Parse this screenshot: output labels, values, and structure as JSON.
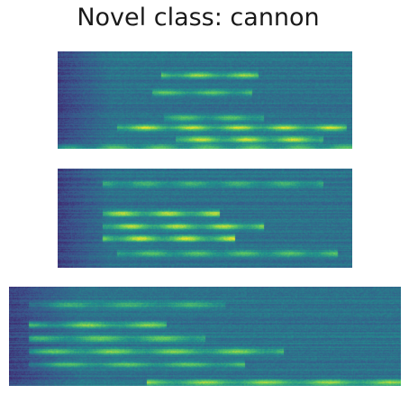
{
  "title": "Novel class: cannon",
  "colormap": [
    "#440154",
    "#3b528b",
    "#21918c",
    "#5ec962",
    "#fde725"
  ],
  "spectrograms": [
    {
      "name": "spectrogram-1",
      "bands": [
        {
          "f": 0.76,
          "t0": 0.35,
          "t1": 0.68,
          "a": 0.45
        },
        {
          "f": 0.58,
          "t0": 0.32,
          "t1": 0.66,
          "a": 0.35
        },
        {
          "f": 0.32,
          "t0": 0.36,
          "t1": 0.7,
          "a": 0.35
        },
        {
          "f": 0.22,
          "t0": 0.2,
          "t1": 0.98,
          "a": 0.55
        },
        {
          "f": 0.1,
          "t0": 0.4,
          "t1": 0.9,
          "a": 0.55
        },
        {
          "f": 0.02,
          "t0": 0.0,
          "t1": 1.0,
          "a": 0.35
        }
      ]
    },
    {
      "name": "spectrogram-2",
      "bands": [
        {
          "f": 0.85,
          "t0": 0.15,
          "t1": 0.9,
          "a": 0.3
        },
        {
          "f": 0.55,
          "t0": 0.15,
          "t1": 0.55,
          "a": 0.55
        },
        {
          "f": 0.42,
          "t0": 0.15,
          "t1": 0.7,
          "a": 0.55
        },
        {
          "f": 0.3,
          "t0": 0.15,
          "t1": 0.6,
          "a": 0.6
        },
        {
          "f": 0.15,
          "t0": 0.2,
          "t1": 0.95,
          "a": 0.35
        }
      ]
    },
    {
      "name": "spectrogram-3",
      "bands": [
        {
          "f": 0.82,
          "t0": 0.05,
          "t1": 0.55,
          "a": 0.3
        },
        {
          "f": 0.62,
          "t0": 0.05,
          "t1": 0.4,
          "a": 0.45
        },
        {
          "f": 0.48,
          "t0": 0.05,
          "t1": 0.5,
          "a": 0.4
        },
        {
          "f": 0.35,
          "t0": 0.05,
          "t1": 0.7,
          "a": 0.45
        },
        {
          "f": 0.22,
          "t0": 0.05,
          "t1": 0.6,
          "a": 0.35
        },
        {
          "f": 0.04,
          "t0": 0.35,
          "t1": 1.0,
          "a": 0.45
        }
      ]
    }
  ]
}
